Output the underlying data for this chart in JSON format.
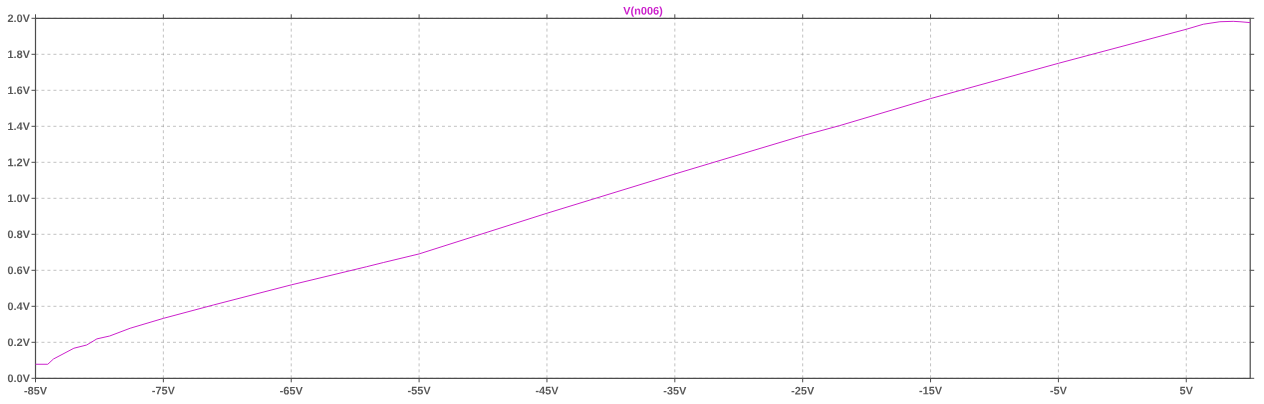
{
  "chart_data": {
    "type": "line",
    "series": [
      {
        "name": "V(n006)",
        "color": "#cc22cc",
        "x": [
          -85,
          -84.04,
          -83.6,
          -82.0,
          -81.0,
          -80.2,
          -79.2,
          -77.6,
          -75,
          -71.1,
          -65,
          -59.1,
          -57.8,
          -55,
          -45,
          -35,
          -25,
          -22.1,
          -15,
          -5,
          5,
          6.33,
          7.63,
          8.67,
          9.2,
          10.0
        ],
        "values": [
          0.078,
          0.078,
          0.107,
          0.167,
          0.185,
          0.219,
          0.235,
          0.278,
          0.333,
          0.407,
          0.519,
          0.62,
          0.643,
          0.691,
          0.917,
          1.135,
          1.348,
          1.404,
          1.554,
          1.75,
          1.939,
          1.967,
          1.981,
          1.983,
          1.981,
          1.976
        ]
      }
    ],
    "xlim": [
      -85,
      10
    ],
    "ylim": [
      0,
      2.0
    ],
    "xticks": [
      {
        "value": -85,
        "label": "-85V"
      },
      {
        "value": -75,
        "label": "-75V"
      },
      {
        "value": -65,
        "label": "-65V"
      },
      {
        "value": -55,
        "label": "-55V"
      },
      {
        "value": -45,
        "label": "-45V"
      },
      {
        "value": -35,
        "label": "-35V"
      },
      {
        "value": -25,
        "label": "-25V"
      },
      {
        "value": -15,
        "label": "-15V"
      },
      {
        "value": -5,
        "label": "-5V"
      },
      {
        "value": 5,
        "label": "5V"
      }
    ],
    "yticks": [
      {
        "value": 0,
        "label": "0.0V"
      },
      {
        "value": 0.2,
        "label": "0.2V"
      },
      {
        "value": 0.4,
        "label": "0.4V"
      },
      {
        "value": 0.6,
        "label": "0.6V"
      },
      {
        "value": 0.8,
        "label": "0.8V"
      },
      {
        "value": 1.0,
        "label": "1.0V"
      },
      {
        "value": 1.2,
        "label": "1.2V"
      },
      {
        "value": 1.4,
        "label": "1.4V"
      },
      {
        "value": 1.6,
        "label": "1.6V"
      },
      {
        "value": 1.8,
        "label": "1.8V"
      },
      {
        "value": 2.0,
        "label": "2.0V"
      }
    ],
    "grid": true,
    "line_style": "solid",
    "marker": "none"
  }
}
